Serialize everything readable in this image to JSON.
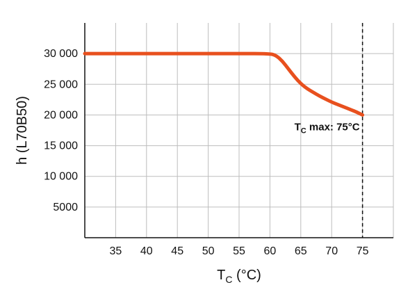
{
  "chart_data": {
    "type": "line",
    "title": "",
    "xlabel_main": "T",
    "xlabel_sub": "C",
    "xlabel_unit": " (°C)",
    "ylabel": "h (L70B50)",
    "xlim": [
      30,
      80
    ],
    "ylim": [
      0,
      35000
    ],
    "x_ticks": [
      35,
      40,
      45,
      50,
      55,
      60,
      65,
      70,
      75
    ],
    "y_ticks": [
      5000,
      10000,
      15000,
      20000,
      25000,
      30000
    ],
    "y_tick_labels": [
      "5000",
      "10 000",
      "15 000",
      "20 000",
      "25 000",
      "30 000"
    ],
    "x_gridlines": [
      35,
      40,
      45,
      50,
      55,
      60,
      65,
      70,
      75,
      80
    ],
    "y_gridlines": [
      5000,
      10000,
      15000,
      20000,
      25000,
      30000
    ],
    "grid": true,
    "series": [
      {
        "color": "#E8501E",
        "x": [
          30,
          35,
          40,
          45,
          50,
          55,
          60,
          61,
          62,
          63,
          64,
          65,
          66,
          67,
          68,
          69,
          70,
          71,
          72,
          73,
          74,
          75
        ],
        "y": [
          30000,
          30000,
          30000,
          30000,
          30000,
          30000,
          30000,
          29700,
          28800,
          27500,
          26200,
          25100,
          24300,
          23700,
          23100,
          22600,
          22100,
          21700,
          21300,
          20900,
          20500,
          20000
        ]
      }
    ],
    "annotations": [
      {
        "text_main": "T",
        "text_sub": "C",
        "text_rest": " max: 75°C",
        "x": 75,
        "y": 20000,
        "vline_x": 75
      }
    ]
  }
}
